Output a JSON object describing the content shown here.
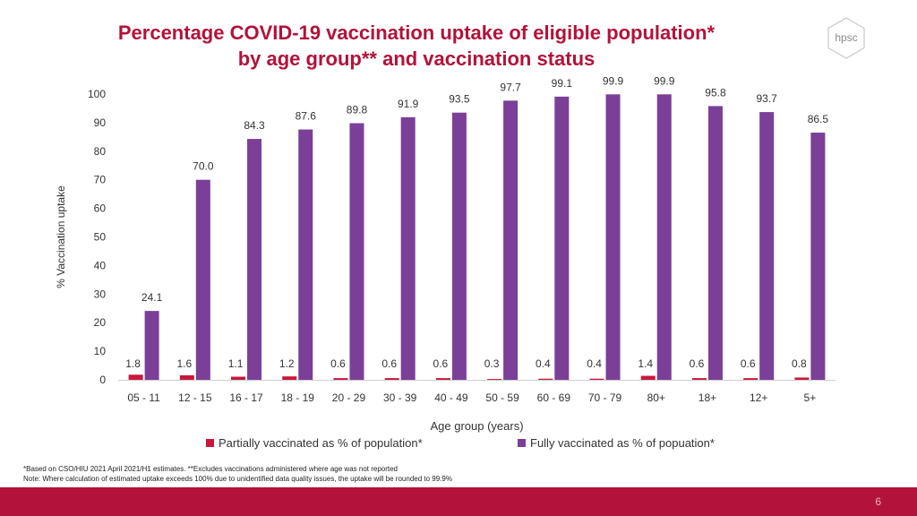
{
  "title": {
    "line1": "Percentage COVID-19 vaccination uptake of eligible population*",
    "line2": "by age group** and vaccination status"
  },
  "logo": {
    "text": "hpsc"
  },
  "chart_data": {
    "type": "bar",
    "title": "Percentage COVID-19 vaccination uptake of eligible population* by age group** and vaccination status",
    "xlabel": "Age group (years)",
    "ylabel": "% Vaccination uptake",
    "ylim": [
      0,
      100
    ],
    "yticks": [
      0,
      10,
      20,
      30,
      40,
      50,
      60,
      70,
      80,
      90,
      100
    ],
    "grid": false,
    "legend_position": "bottom",
    "categories": [
      "05 - 11",
      "12 - 15",
      "16 - 17",
      "18 - 19",
      "20 - 29",
      "30 - 39",
      "40 - 49",
      "50 - 59",
      "60 - 69",
      "70 - 79",
      "80+",
      "18+",
      "12+",
      "5+"
    ],
    "series": [
      {
        "name": "Partially vaccinated as % of population*",
        "color": "#c8183c",
        "values": [
          1.8,
          1.6,
          1.1,
          1.2,
          0.6,
          0.6,
          0.6,
          0.3,
          0.4,
          0.4,
          1.4,
          0.6,
          0.6,
          0.8
        ],
        "labels": [
          "1.8",
          "1.6",
          "1.1",
          "1.2",
          "0.6",
          "0.6",
          "0.6",
          "0.3",
          "0.4",
          "0.4",
          "1.4",
          "0.6",
          "0.6",
          "0.8"
        ]
      },
      {
        "name": "Fully vaccinated as % of popuation*",
        "color": "#7b3f98",
        "values": [
          24.1,
          70.0,
          84.3,
          87.6,
          89.8,
          91.9,
          93.5,
          97.7,
          99.1,
          99.9,
          99.9,
          95.8,
          93.7,
          86.5
        ],
        "labels": [
          "24.1",
          "70.0",
          "84.3",
          "87.6",
          "89.8",
          "91.9",
          "93.5",
          "97.7",
          "99.1",
          "99.9",
          "99.9",
          "95.8",
          "93.7",
          "86.5"
        ]
      }
    ]
  },
  "footnotes": {
    "line1": "*Based on CSO/HIU 2021 April 2021/H1 estimates. **Excludes vaccinations administered where age was not reported",
    "line2": "Note: Where calculation of estimated uptake exceeds 100% due to unidentified data quality issues, the uptake will be rounded to 99.9%"
  },
  "page_number": "6"
}
